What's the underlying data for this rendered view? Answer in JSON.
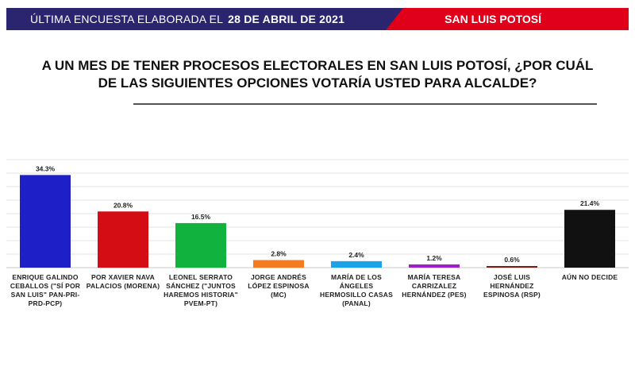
{
  "header": {
    "date_prefix": "ÚLTIMA ENCUESTA ELABORADA EL",
    "date": "28 DE ABRIL DE 2021",
    "state": "SAN LUIS POTOSÍ",
    "colors": {
      "navy": "#2b2570",
      "red": "#e1001a"
    }
  },
  "question": "A UN MES DE TENER PROCESOS ELECTORALES EN SAN LUIS POTOSÍ, ¿POR CUÁL DE LAS SIGUIENTES OPCIONES VOTARÍA USTED PARA ALCALDE?",
  "chart_data": {
    "type": "bar",
    "categories": [
      "ENRIQUE GALINDO CEBALLOS (\"SÍ POR SAN LUIS\" PAN-PRI-PRD-PCP)",
      "POR XAVIER NAVA PALACIOS (MORENA)",
      "LEONEL SERRATO SÁNCHEZ (\"JUNTOS HAREMOS HISTORIA\" PVEM-PT)",
      "JORGE ANDRÉS LÓPEZ ESPINOSA (MC)",
      "MARÍA DE LOS ÁNGELES HERMOSILLO CASAS (PANAL)",
      "MARÍA TERESA CARRIZALEZ HERNÁNDEZ (PES)",
      "JOSÉ LUIS HERNÁNDEZ ESPINOSA (RSP)",
      "AÚN NO DECIDE"
    ],
    "values": [
      34.3,
      20.8,
      16.5,
      2.8,
      2.4,
      1.2,
      0.6,
      21.4
    ],
    "data_labels": [
      "34.3%",
      "20.8%",
      "16.5%",
      "2.8%",
      "2.4%",
      "1.2%",
      "0.6%",
      "21.4%"
    ],
    "colors": [
      "#1f1fc8",
      "#d40c14",
      "#12b23e",
      "#f47b20",
      "#1aa3e8",
      "#a020c8",
      "#7a1a10",
      "#111111"
    ],
    "ylim": [
      0,
      40
    ],
    "grid": true
  }
}
